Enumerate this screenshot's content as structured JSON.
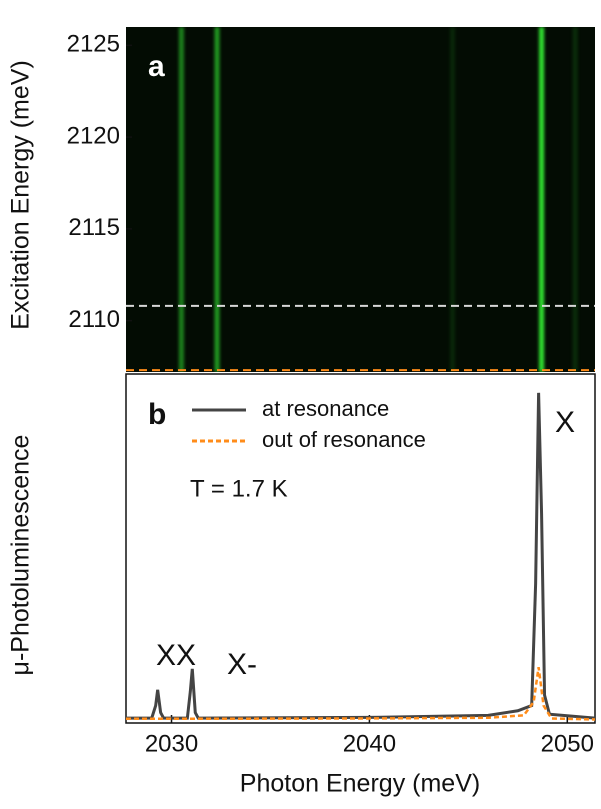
{
  "chart_data": [
    {
      "type": "heatmap",
      "panel_label": "a",
      "y_label": "Excitation Energy (meV)",
      "xlim": [
        2027.7,
        2051.4
      ],
      "ylim": [
        2107.2,
        2126.0
      ],
      "yticks": [
        2110,
        2115,
        2120,
        2125
      ],
      "color": "#33e633",
      "lines": {
        "x": [
          2030.5,
          2032.3,
          2044.2,
          2048.7,
          2050.4
        ],
        "values": [
          0.55,
          0.65,
          0.12,
          1,
          0.15
        ]
      },
      "markers": [
        {
          "y": 2110.8,
          "color": "#d8d8d8"
        },
        {
          "y": 2107.3,
          "color": "#ff8c1a"
        }
      ]
    },
    {
      "type": "line",
      "panel_label": "b",
      "y_label": "μ-Photoluminescence",
      "x_label": "Photon Energy (meV)",
      "xlim": [
        2027.7,
        2051.4
      ],
      "ylim": [
        0,
        100
      ],
      "xticks": [
        2030,
        2040,
        2050
      ],
      "legend": "upper left",
      "note": "T = 1.7 K",
      "annotations": [
        "XX",
        "X-",
        "X"
      ],
      "series": [
        {
          "name": "at resonance",
          "color": "#444444",
          "dash": false,
          "x": [
            2027.7,
            2029.0,
            2029.2,
            2029.3,
            2029.45,
            2029.6,
            2030.8,
            2030.95,
            2031.05,
            2031.2,
            2031.35,
            2040.0,
            2046.0,
            2047.5,
            2048.2,
            2048.4,
            2048.55,
            2048.7,
            2048.85,
            2049.1,
            2051.4
          ],
          "values": [
            1.4,
            1.4,
            5,
            9.5,
            3,
            1.4,
            1.4,
            9,
            15.5,
            3,
            1.4,
            1.6,
            2.2,
            3.5,
            5,
            40,
            94.6,
            60,
            8,
            2.5,
            1.4
          ]
        },
        {
          "name": "out of resonance",
          "color": "#ff8c1a",
          "dash": true,
          "x": [
            2027.7,
            2031.0,
            2040.0,
            2046.0,
            2047.8,
            2048.3,
            2048.55,
            2048.8,
            2049.2,
            2051.4
          ],
          "values": [
            1.2,
            1.2,
            1.3,
            1.5,
            2.2,
            6,
            16,
            5,
            1.3,
            1
          ]
        }
      ]
    }
  ]
}
